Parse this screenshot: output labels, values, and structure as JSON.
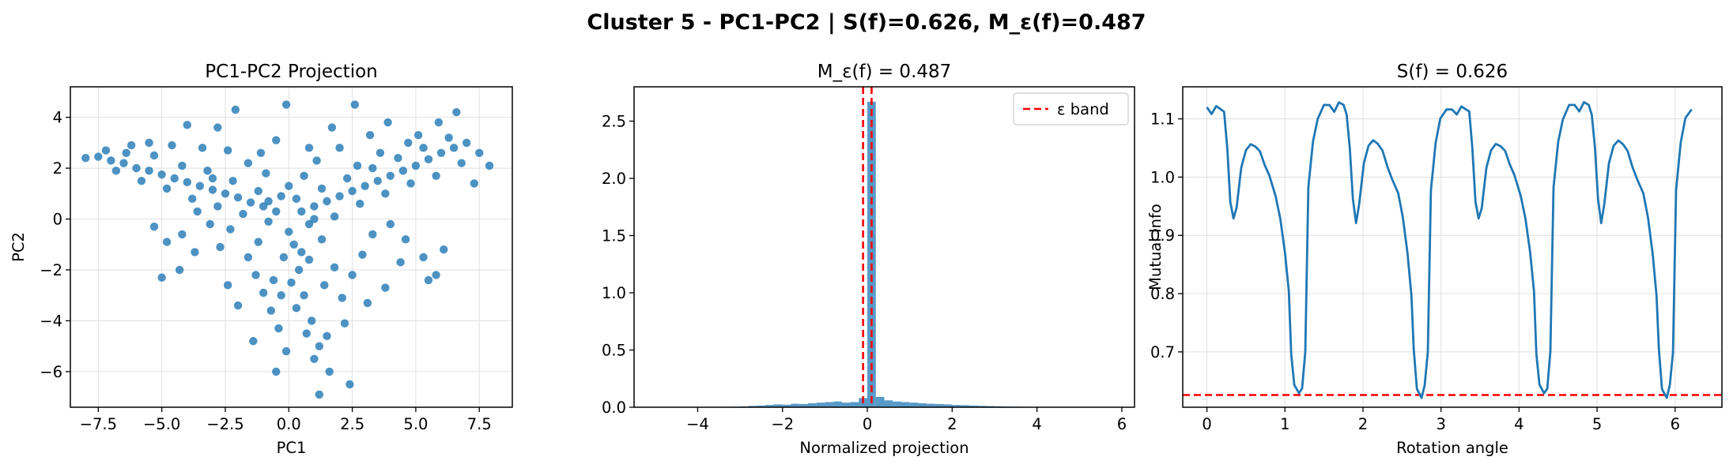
{
  "suptitle": "Cluster 5 - PC1-PC2 | S(f)=0.626, M_ε(f)=0.487",
  "colors": {
    "series": "#1f77b4",
    "threshold": "#ff0000",
    "grid": "#e0e0e0"
  },
  "chart_data": [
    {
      "type": "scatter",
      "title": "PC1-PC2 Projection",
      "xlabel": "PC1",
      "ylabel": "PC2",
      "xlim": [
        -8.6,
        8.8
      ],
      "ylim": [
        -7.4,
        5.2
      ],
      "xticks": [
        -7.5,
        -5.0,
        -2.5,
        0.0,
        2.5,
        5.0,
        7.5
      ],
      "xticklabels": [
        "−7.5",
        "−5.0",
        "−2.5",
        "0.0",
        "2.5",
        "5.0",
        "7.5"
      ],
      "yticks": [
        -6,
        -4,
        -2,
        0,
        2,
        4
      ],
      "yticklabels": [
        "−6",
        "−4",
        "−2",
        "0",
        "2",
        "4"
      ],
      "grid": true,
      "points": [
        [
          -8.0,
          2.4
        ],
        [
          -7.5,
          2.45
        ],
        [
          -7.0,
          2.3
        ],
        [
          -6.5,
          2.2
        ],
        [
          -6.0,
          2.0
        ],
        [
          -5.5,
          1.9
        ],
        [
          -5.0,
          1.75
        ],
        [
          -4.5,
          1.6
        ],
        [
          -4.0,
          1.45
        ],
        [
          -3.5,
          1.3
        ],
        [
          -3.0,
          1.15
        ],
        [
          -2.5,
          1.0
        ],
        [
          -2.0,
          0.85
        ],
        [
          -1.5,
          0.65
        ],
        [
          -1.0,
          0.5
        ],
        [
          -0.5,
          0.3
        ],
        [
          0.5,
          0.3
        ],
        [
          1.0,
          0.5
        ],
        [
          1.5,
          0.7
        ],
        [
          2.0,
          0.9
        ],
        [
          2.5,
          1.1
        ],
        [
          3.0,
          1.3
        ],
        [
          3.5,
          1.5
        ],
        [
          4.0,
          1.7
        ],
        [
          4.5,
          1.9
        ],
        [
          5.0,
          2.1
        ],
        [
          5.5,
          2.35
        ],
        [
          6.0,
          2.6
        ],
        [
          6.5,
          2.8
        ],
        [
          7.0,
          3.0
        ],
        [
          -7.2,
          2.7
        ],
        [
          -6.8,
          1.9
        ],
        [
          -6.2,
          2.9
        ],
        [
          -5.8,
          1.5
        ],
        [
          -5.3,
          2.5
        ],
        [
          -4.8,
          1.2
        ],
        [
          -4.2,
          2.1
        ],
        [
          -3.8,
          0.8
        ],
        [
          -3.2,
          1.9
        ],
        [
          -2.8,
          0.5
        ],
        [
          -2.2,
          1.5
        ],
        [
          -1.8,
          0.2
        ],
        [
          -1.2,
          1.1
        ],
        [
          -0.8,
          -0.1
        ],
        [
          -0.3,
          0.9
        ],
        [
          0.3,
          0.8
        ],
        [
          0.8,
          -0.2
        ],
        [
          1.3,
          1.2
        ],
        [
          1.8,
          0.1
        ],
        [
          2.3,
          1.6
        ],
        [
          2.8,
          0.6
        ],
        [
          3.3,
          2.0
        ],
        [
          3.8,
          1.0
        ],
        [
          4.3,
          2.4
        ],
        [
          4.8,
          1.4
        ],
        [
          5.3,
          2.8
        ],
        [
          5.8,
          1.7
        ],
        [
          6.3,
          3.2
        ],
        [
          6.8,
          2.2
        ],
        [
          7.5,
          2.6
        ],
        [
          7.9,
          2.1
        ],
        [
          7.3,
          1.4
        ],
        [
          6.6,
          4.2
        ],
        [
          5.9,
          3.8
        ],
        [
          5.1,
          3.3
        ],
        [
          3.9,
          3.8
        ],
        [
          3.2,
          3.3
        ],
        [
          2.6,
          4.5
        ],
        [
          1.7,
          3.6
        ],
        [
          0.8,
          2.8
        ],
        [
          -0.1,
          4.5
        ],
        [
          -0.5,
          3.1
        ],
        [
          -1.1,
          2.6
        ],
        [
          -2.1,
          4.3
        ],
        [
          -2.8,
          3.6
        ],
        [
          -3.4,
          2.8
        ],
        [
          -4.0,
          3.7
        ],
        [
          -4.6,
          2.9
        ],
        [
          -5.5,
          3.0
        ],
        [
          -6.4,
          2.6
        ],
        [
          0.0,
          -0.5
        ],
        [
          0.2,
          -1.0
        ],
        [
          -0.2,
          -1.5
        ],
        [
          0.4,
          -2.0
        ],
        [
          0.1,
          -2.5
        ],
        [
          0.6,
          -3.0
        ],
        [
          0.3,
          -3.5
        ],
        [
          0.9,
          -4.0
        ],
        [
          0.7,
          -4.5
        ],
        [
          1.2,
          -5.0
        ],
        [
          1.0,
          -5.5
        ],
        [
          1.6,
          -6.0
        ],
        [
          2.4,
          -6.5
        ],
        [
          1.2,
          -6.9
        ],
        [
          -0.1,
          -5.2
        ],
        [
          -0.4,
          -4.3
        ],
        [
          -0.7,
          -3.6
        ],
        [
          -1.0,
          -2.9
        ],
        [
          -1.3,
          -2.2
        ],
        [
          -1.6,
          -1.5
        ],
        [
          1.4,
          -2.6
        ],
        [
          1.8,
          -1.9
        ],
        [
          2.1,
          -3.1
        ],
        [
          2.5,
          -2.2
        ],
        [
          2.9,
          -1.4
        ],
        [
          3.3,
          -0.6
        ],
        [
          -2.3,
          -0.4
        ],
        [
          -2.7,
          -1.1
        ],
        [
          -3.1,
          -0.2
        ],
        [
          -3.6,
          0.3
        ],
        [
          -4.2,
          -0.6
        ],
        [
          -4.8,
          -0.9
        ],
        [
          -5.3,
          -0.3
        ],
        [
          -5.0,
          -2.3
        ],
        [
          -4.3,
          -2.0
        ],
        [
          -3.7,
          -1.3
        ],
        [
          4.0,
          -0.2
        ],
        [
          4.6,
          -0.8
        ],
        [
          5.3,
          -1.5
        ],
        [
          5.8,
          -2.2
        ],
        [
          6.1,
          -1.2
        ],
        [
          5.5,
          -2.4
        ],
        [
          4.4,
          -1.7
        ],
        [
          3.8,
          -2.7
        ],
        [
          3.1,
          -3.3
        ],
        [
          2.2,
          -4.1
        ],
        [
          1.5,
          -4.6
        ],
        [
          -0.5,
          -6.0
        ],
        [
          -1.4,
          -4.8
        ],
        [
          -2.0,
          -3.4
        ],
        [
          -2.4,
          -2.6
        ],
        [
          -0.9,
          1.8
        ],
        [
          -1.6,
          2.2
        ],
        [
          -2.4,
          2.7
        ],
        [
          -3.0,
          1.6
        ],
        [
          0.6,
          1.7
        ],
        [
          1.1,
          2.3
        ],
        [
          2.0,
          2.8
        ],
        [
          2.7,
          2.1
        ],
        [
          3.6,
          2.6
        ],
        [
          4.7,
          3.0
        ],
        [
          0.5,
          -1.3
        ],
        [
          -0.6,
          -2.4
        ],
        [
          1.3,
          -0.8
        ],
        [
          -1.2,
          -0.9
        ],
        [
          0.0,
          1.3
        ],
        [
          -0.3,
          -3.0
        ],
        [
          0.8,
          -1.6
        ],
        [
          1.0,
          0.0
        ],
        [
          -0.8,
          0.7
        ]
      ]
    },
    {
      "type": "bar",
      "title": "M_ε(f) = 0.487",
      "xlabel": "Normalized projection",
      "ylabel": "",
      "xlim": [
        -5.5,
        6.3
      ],
      "ylim": [
        0,
        2.8
      ],
      "xticks": [
        -4,
        -2,
        0,
        2,
        4,
        6
      ],
      "xticklabels": [
        "−4",
        "−2",
        "0",
        "2",
        "4",
        "6"
      ],
      "yticks": [
        0.0,
        0.5,
        1.0,
        1.5,
        2.0,
        2.5
      ],
      "yticklabels": [
        "0.0",
        "0.5",
        "1.0",
        "1.5",
        "2.0",
        "2.5"
      ],
      "grid": false,
      "bin_width": 0.2,
      "bin_starts": [
        -4.0,
        -3.8,
        -3.6,
        -3.4,
        -3.2,
        -3.0,
        -2.8,
        -2.6,
        -2.4,
        -2.2,
        -2.0,
        -1.8,
        -1.6,
        -1.4,
        -1.2,
        -1.0,
        -0.8,
        -0.6,
        -0.4,
        -0.2,
        0.0,
        0.2,
        0.4,
        0.6,
        0.8,
        1.0,
        1.2,
        1.4,
        1.6,
        1.8,
        2.0,
        2.2,
        2.4,
        2.6,
        2.8,
        3.0,
        3.2,
        3.4,
        3.6,
        3.8,
        4.0
      ],
      "values": [
        0.002,
        0.002,
        0.003,
        0.004,
        0.005,
        0.008,
        0.012,
        0.015,
        0.02,
        0.025,
        0.022,
        0.03,
        0.028,
        0.035,
        0.04,
        0.045,
        0.05,
        0.04,
        0.045,
        0.08,
        2.67,
        0.09,
        0.06,
        0.05,
        0.045,
        0.04,
        0.035,
        0.03,
        0.028,
        0.025,
        0.02,
        0.018,
        0.015,
        0.012,
        0.01,
        0.008,
        0.006,
        0.005,
        0.004,
        0.003,
        0.002
      ],
      "threshold_lines": [
        -0.1,
        0.1
      ],
      "legend": {
        "label": "ε band",
        "position": "upper right"
      }
    },
    {
      "type": "line",
      "title": "S(f) = 0.626",
      "xlabel": "Rotation angle",
      "ylabel": "Mutual Info",
      "xlim": [
        -0.31,
        6.6
      ],
      "ylim": [
        0.605,
        1.155
      ],
      "xticks": [
        0,
        1,
        2,
        3,
        4,
        5,
        6
      ],
      "xticklabels": [
        "0",
        "1",
        "2",
        "3",
        "4",
        "5",
        "6"
      ],
      "yticks": [
        0.7,
        0.8,
        0.9,
        1.0,
        1.1
      ],
      "yticklabels": [
        "0.7",
        "0.8",
        "0.9",
        "1.0",
        "1.1"
      ],
      "grid": true,
      "hline": 0.626,
      "segment": [
        [
          0.0,
          1.12
        ],
        [
          0.06,
          1.11
        ],
        [
          0.12,
          1.125
        ],
        [
          0.18,
          1.12
        ],
        [
          0.22,
          1.11
        ],
        [
          0.26,
          1.05
        ],
        [
          0.3,
          0.96
        ],
        [
          0.34,
          0.925
        ],
        [
          0.38,
          0.95
        ],
        [
          0.44,
          1.02
        ],
        [
          0.5,
          1.05
        ],
        [
          0.56,
          1.06
        ],
        [
          0.62,
          1.055
        ],
        [
          0.68,
          1.045
        ],
        [
          0.74,
          1.02
        ],
        [
          0.8,
          1.0
        ],
        [
          0.88,
          0.97
        ],
        [
          0.94,
          0.93
        ],
        [
          1.0,
          0.87
        ],
        [
          1.05,
          0.8
        ],
        [
          1.08,
          0.7
        ],
        [
          1.12,
          0.64
        ],
        [
          1.18,
          0.625
        ],
        [
          1.22,
          0.64
        ],
        [
          1.26,
          0.7
        ],
        [
          1.3,
          0.98
        ],
        [
          1.36,
          1.06
        ],
        [
          1.42,
          1.1
        ],
        [
          1.5,
          1.12
        ],
        [
          1.57,
          1.12
        ]
      ]
    }
  ]
}
